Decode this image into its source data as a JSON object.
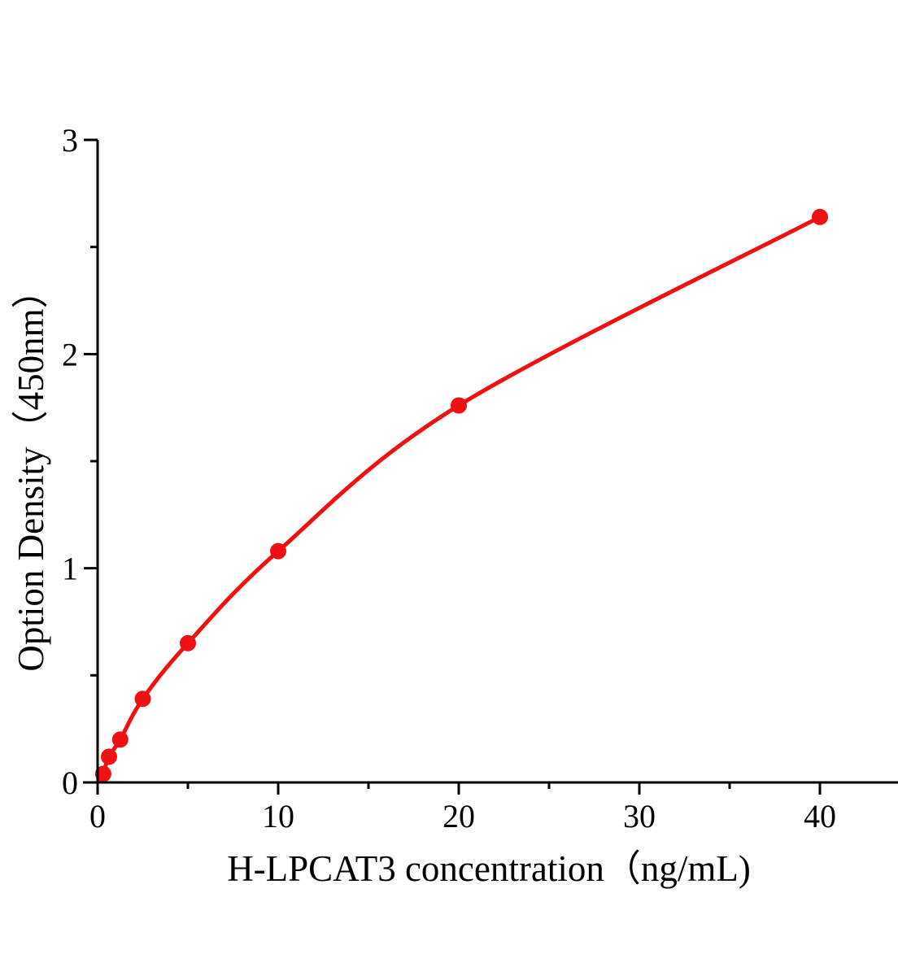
{
  "chart_data": {
    "type": "line",
    "title": "",
    "xlabel": "H-LPCAT3 concentration（ng/mL)",
    "ylabel": "Option Density（450nm）",
    "x": [
      0.31,
      0.63,
      1.25,
      2.5,
      5,
      10,
      20,
      40
    ],
    "y": [
      0.04,
      0.12,
      0.2,
      0.39,
      0.65,
      1.08,
      1.76,
      2.64
    ],
    "xlim": [
      0,
      44.3
    ],
    "ylim": [
      0,
      3
    ],
    "x_major_ticks": [
      0,
      10,
      20,
      30,
      40
    ],
    "x_minor_ticks": [
      5,
      15,
      25,
      35
    ],
    "y_major_ticks": [
      0,
      1,
      2,
      3
    ],
    "y_minor_ticks": [
      0.5,
      1.5,
      2.5
    ],
    "grid": false,
    "legend": "none",
    "marker": "filled-circle",
    "colors": {
      "curve": "#ee1111",
      "axis": "#000000",
      "text": "#000000",
      "background": "#ffffff"
    }
  }
}
